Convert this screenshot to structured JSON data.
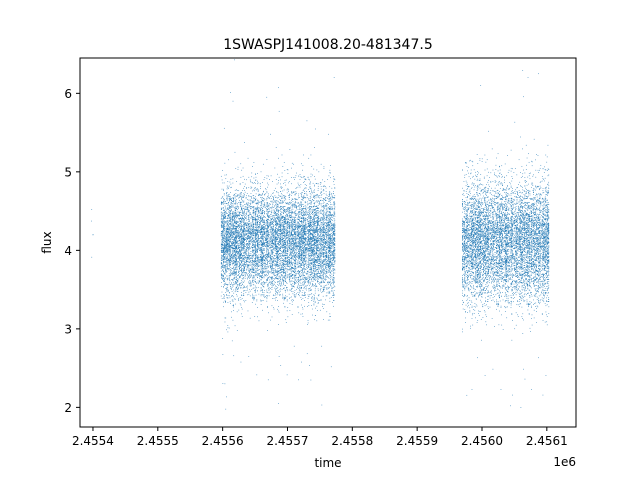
{
  "chart_data": {
    "type": "scatter",
    "title": "1SWASPJ141008.20-481347.5",
    "xlabel": "time",
    "ylabel": "flux",
    "x_offset_label": "1e6",
    "xlim": [
      2455380,
      2456145
    ],
    "ylim": [
      1.75,
      6.45
    ],
    "x_ticks": [
      2455400,
      2455500,
      2455600,
      2455700,
      2455800,
      2455900,
      2456000,
      2456100
    ],
    "x_tick_labels": [
      "2.4554",
      "2.4555",
      "2.4556",
      "2.4557",
      "2.4558",
      "2.4559",
      "2.4560",
      "2.4561"
    ],
    "y_ticks": [
      2,
      3,
      4,
      5,
      6
    ],
    "y_tick_labels": [
      "2",
      "3",
      "4",
      "5",
      "6"
    ],
    "grid": false,
    "legend": "none",
    "marker_color": "#1f77b4",
    "series": [
      {
        "clusters": [
          {
            "x_range": [
              2455398,
              2455400
            ],
            "y_center": 4.05,
            "y_spread": 0.45,
            "density": 0.04
          },
          {
            "x_range": [
              2455598,
              2455773
            ],
            "y_center": 4.1,
            "y_spread": 0.45,
            "density": 1.0
          },
          {
            "x_range": [
              2455970,
              2456103
            ],
            "y_center": 4.1,
            "y_spread": 0.5,
            "density": 1.0
          }
        ],
        "outlier_extremes": {
          "min": 2.0,
          "max": 6.25
        }
      }
    ]
  }
}
